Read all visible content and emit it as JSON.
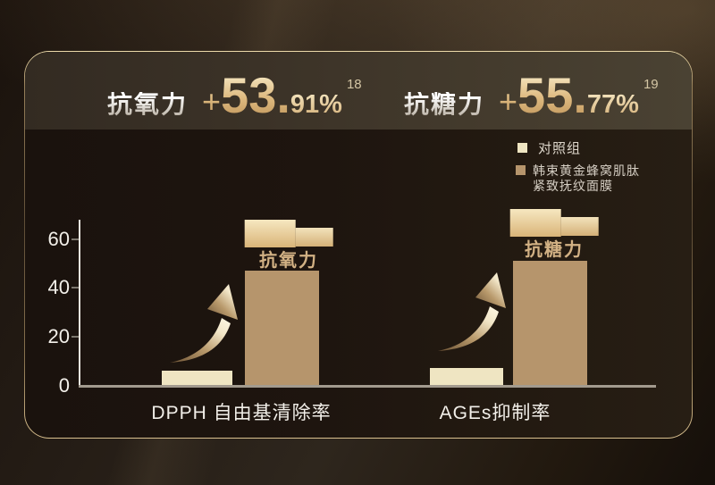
{
  "header": {
    "groups": [
      {
        "label": "抗氧力",
        "value": "+53.",
        "value_frac": "91%",
        "footnote": "18"
      },
      {
        "label": "抗糖力",
        "value": "+55.",
        "value_frac": "77%",
        "footnote": "19"
      }
    ]
  },
  "legend": {
    "items": [
      {
        "label": "对照组",
        "color": "#efe5c2"
      },
      {
        "label_line1": "韩束黄金蜂窝肌肽",
        "label_line2": "紧致抚纹面膜",
        "color": "#b6956c"
      }
    ]
  },
  "chart_data": {
    "type": "bar",
    "title": "",
    "categories": [
      "DPPH 自由基清除率",
      "AGEs抑制率"
    ],
    "series": [
      {
        "name": "对照组",
        "color": "#efe5c2",
        "values": [
          6,
          7
        ]
      },
      {
        "name": "韩束黄金蜂窝肌肽紧致抚纹面膜",
        "color": "#b6956c",
        "values": [
          47,
          51
        ]
      }
    ],
    "ylim": [
      0,
      60
    ],
    "yticks": [
      "0",
      "20",
      "40",
      "60"
    ],
    "grid": false,
    "legend_position": "top-right",
    "annotations": [
      {
        "value": "+53.",
        "value_frac": "91%",
        "label": "抗氧力"
      },
      {
        "value": "+55.",
        "value_frac": "77%",
        "label": "抗糖力"
      }
    ]
  },
  "colors": {
    "gold_accent": "#d8b886",
    "control_bar": "#efe5c2",
    "product_bar": "#b6956c",
    "axis_line": "#eae6df",
    "baseline": "#a29a8e",
    "panel_border": "#c9ab76"
  }
}
